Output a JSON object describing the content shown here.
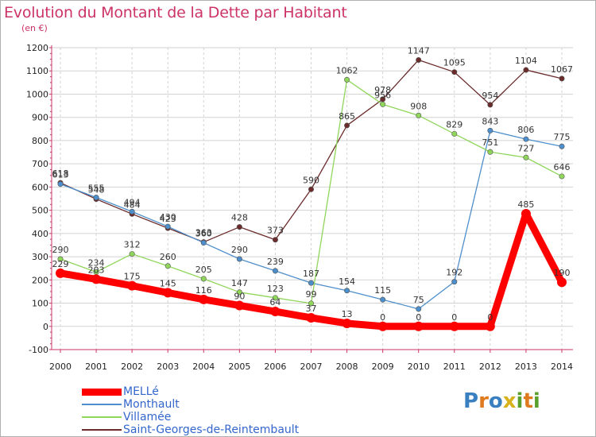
{
  "title": "Evolution du Montant de la Dette par Habitant",
  "subtitle": "(en €)",
  "logo": {
    "text": "Proxiti"
  },
  "chart_data": {
    "type": "line",
    "title": "Evolution du Montant de la Dette par Habitant",
    "ylabel": "(en €)",
    "x": [
      "2000",
      "2001",
      "2002",
      "2003",
      "2004",
      "2005",
      "2006",
      "2007",
      "2008",
      "2009",
      "2010",
      "2011",
      "2012",
      "2013",
      "2014"
    ],
    "ylim": [
      -100,
      1200
    ],
    "yticks": [
      "-100",
      "0",
      "100",
      "200",
      "300",
      "400",
      "500",
      "600",
      "700",
      "800",
      "900",
      "1000",
      "1100",
      "1200"
    ],
    "grid": true,
    "legend": "bottom-left",
    "series": [
      {
        "name": "Saint-Georges-de-Reintembault",
        "color": "#6b2b2b",
        "values": [
          618,
          548,
          484,
          423,
          363,
          428,
          373,
          590,
          865,
          978,
          1147,
          1095,
          954,
          1104,
          1067
        ],
        "labels": [
          "618",
          "548",
          "484",
          "423",
          "363",
          "428",
          "373",
          "590",
          "865",
          "978",
          "1147",
          "1095",
          "954",
          "1104",
          "1067"
        ]
      },
      {
        "name": "Monthault",
        "color": "#4d8fcc",
        "values": [
          613,
          555,
          494,
          430,
          360,
          290,
          239,
          187,
          154,
          115,
          75,
          192,
          843,
          806,
          775
        ],
        "labels": [
          "613",
          "555",
          "494",
          "430",
          "360",
          "290",
          "239",
          "187",
          "154",
          "115",
          "75",
          "192",
          "843",
          "806",
          "775"
        ]
      },
      {
        "name": "Villamée",
        "color": "#8fd65a",
        "values": [
          290,
          234,
          312,
          260,
          205,
          147,
          123,
          99,
          1062,
          956,
          908,
          829,
          751,
          727,
          646
        ],
        "labels": [
          "290",
          "234",
          "312",
          "260",
          "205",
          "147",
          "123",
          "99",
          "1062",
          "956",
          "908",
          "829",
          "751",
          "727",
          "646"
        ]
      },
      {
        "name": "MELLé",
        "color": "#ff0000",
        "values": [
          229,
          203,
          175,
          145,
          116,
          90,
          64,
          37,
          13,
          0,
          0,
          0,
          0,
          485,
          190
        ],
        "labels": [
          "229",
          "203",
          "175",
          "145",
          "116",
          "90",
          "64",
          "37",
          "13",
          "0",
          "0",
          "0",
          "0",
          "485",
          "190"
        ]
      }
    ]
  },
  "legend": [
    {
      "name": "MELLé",
      "color": "#ff0000",
      "thick": true
    },
    {
      "name": "Monthault",
      "color": "#4d8fcc",
      "thick": false
    },
    {
      "name": "Villamée",
      "color": "#8fd65a",
      "thick": false
    },
    {
      "name": "Saint-Georges-de-Reintembault",
      "color": "#6b2b2b",
      "thick": false
    }
  ]
}
